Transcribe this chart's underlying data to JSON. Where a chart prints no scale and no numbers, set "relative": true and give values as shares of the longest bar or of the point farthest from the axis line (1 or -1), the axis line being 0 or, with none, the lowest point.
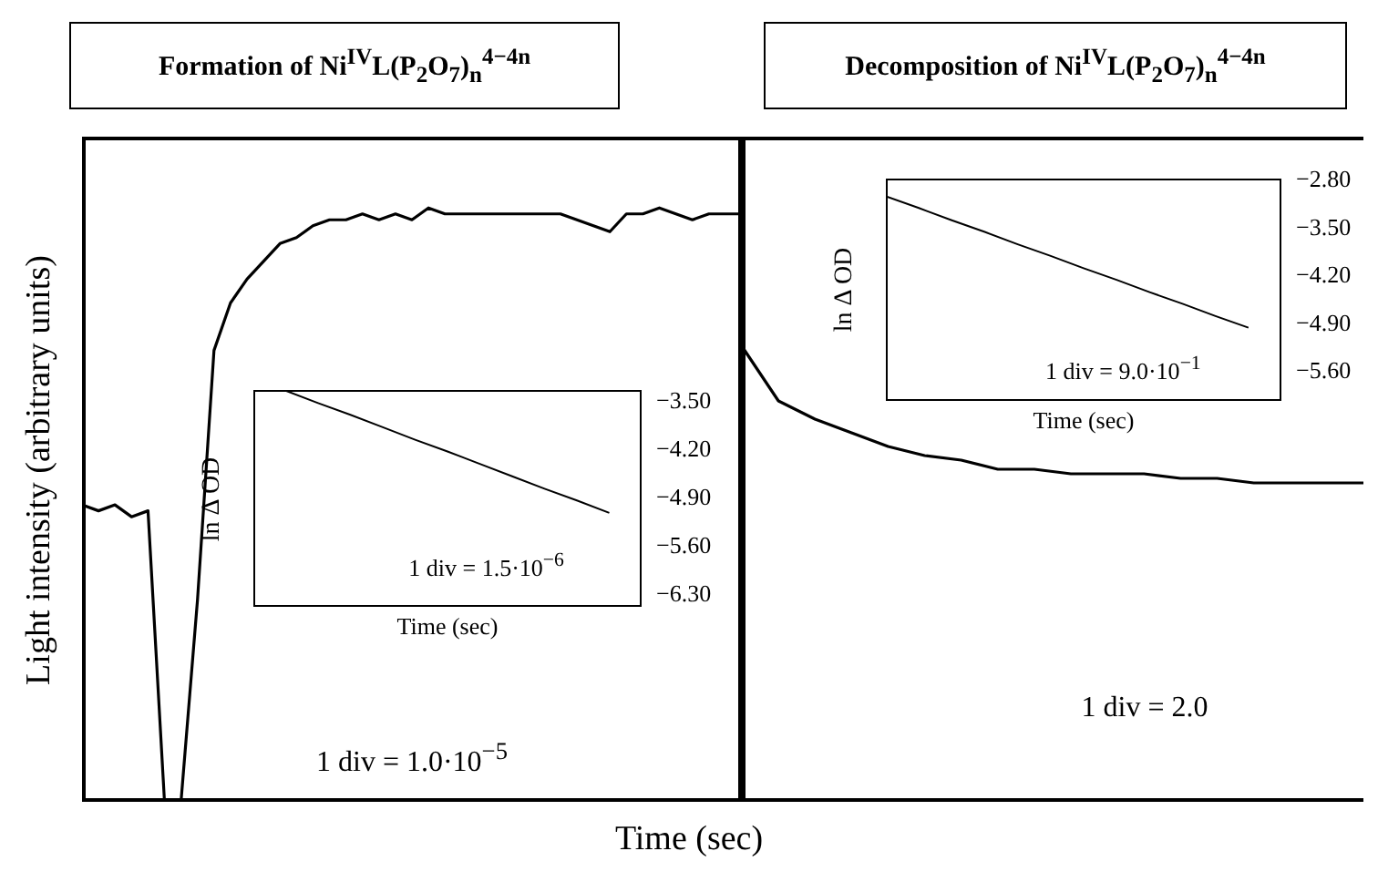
{
  "chart_data": [
    {
      "type": "line",
      "title": "Formation of Ni$^{IV}$L(P$_{2}$O$_{7}$)$_{n}$$^{4−4n}$",
      "ylabel": "Light intensity (arbitrary units)",
      "xlabel": "Time (sec)",
      "relative": true,
      "annotations": [
        "1 div = 1.0·10$^{−5}$"
      ],
      "categories": [
        null,
        null,
        null,
        null,
        null,
        null,
        null,
        null,
        null,
        null,
        null,
        null,
        null,
        null,
        null,
        null,
        null,
        null,
        null,
        null,
        null,
        null,
        null,
        null,
        null,
        null,
        null,
        null,
        null,
        null,
        null,
        null,
        null,
        null,
        null,
        null,
        null,
        null,
        null,
        null,
        null
      ],
      "series": [
        {
          "color": "#000000",
          "values": [
            0.5,
            0.49,
            0.5,
            0.48,
            0.49,
            0,
            0,
            0.34,
            0.76,
            0.84,
            0.88,
            0.91,
            0.94,
            0.95,
            0.97,
            0.98,
            0.98,
            0.99,
            0.98,
            0.99,
            0.98,
            1.0,
            0.99,
            0.99,
            0.99,
            0.99,
            0.99,
            0.99,
            0.99,
            0.99,
            0.98,
            0.97,
            0.96,
            0.99,
            0.99,
            1.0,
            0.99,
            0.98,
            0.99,
            0.99,
            0.99
          ]
        }
      ]
    },
    {
      "type": "line",
      "title": "Decomposition of Ni$^{IV}$L(P$_{2}$O$_{7}$)$_{n}$$^{4−4n}$",
      "relative": true,
      "annotations": [
        "1 div = 2.0"
      ],
      "categories": [
        null,
        null,
        null,
        null,
        null,
        null,
        null,
        null,
        null,
        null,
        null,
        null,
        null,
        null,
        null,
        null,
        null,
        null
      ],
      "series": [
        {
          "color": "#000000",
          "values": [
            1.0,
            0.88,
            0.84,
            0.81,
            0.78,
            0.76,
            0.75,
            0.73,
            0.73,
            0.72,
            0.72,
            0.72,
            0.71,
            0.71,
            0.7,
            0.7,
            0.7,
            0.7
          ]
        }
      ]
    },
    {
      "type": "line",
      "ylabel": "ln Δ OD",
      "xlabel": "Time (sec)",
      "annotations": [
        "1 div = 1.5·10$^{−6}$"
      ],
      "tick_labels": "y",
      "categories": [
        null,
        null,
        null,
        null,
        null,
        null,
        null,
        null,
        null,
        null,
        null,
        null,
        null
      ],
      "ylim": [
        -6.5,
        -3.36
      ],
      "yticks": [
        {
          "value": -3.5,
          "label": "−3.50"
        },
        {
          "value": -4.2,
          "label": "−4.20"
        },
        {
          "value": -4.9,
          "label": "−4.90"
        },
        {
          "value": -5.6,
          "label": "−5.60"
        },
        {
          "value": -6.3,
          "label": "−6.30"
        }
      ],
      "series": [
        {
          "color": "#000000",
          "values": [
            null,
            -3.37,
            -3.55,
            -3.72,
            -3.9,
            -4.08,
            -4.25,
            -4.43,
            -4.61,
            -4.79,
            -4.96,
            -5.14,
            null
          ]
        }
      ]
    },
    {
      "type": "line",
      "ylabel": "ln Δ OD",
      "xlabel": "Time (sec)",
      "annotations": [
        "1 div = 9.0·10$^{−1}$"
      ],
      "tick_labels": "y",
      "categories": [
        null,
        null,
        null,
        null,
        null,
        null,
        null,
        null,
        null,
        null,
        null,
        null,
        null
      ],
      "ylim": [
        -6.05,
        -2.8
      ],
      "yticks": [
        {
          "value": -2.8,
          "label": "−2.80"
        },
        {
          "value": -3.5,
          "label": "−3.50"
        },
        {
          "value": -4.2,
          "label": "−4.20"
        },
        {
          "value": -4.9,
          "label": "−4.90"
        },
        {
          "value": -5.6,
          "label": "−5.60"
        }
      ],
      "series": [
        {
          "color": "#000000",
          "values": [
            -3.06,
            -3.23,
            -3.41,
            -3.58,
            -3.76,
            -3.93,
            -4.11,
            -4.28,
            -4.46,
            -4.63,
            -4.81,
            -4.98,
            null
          ]
        }
      ]
    }
  ]
}
